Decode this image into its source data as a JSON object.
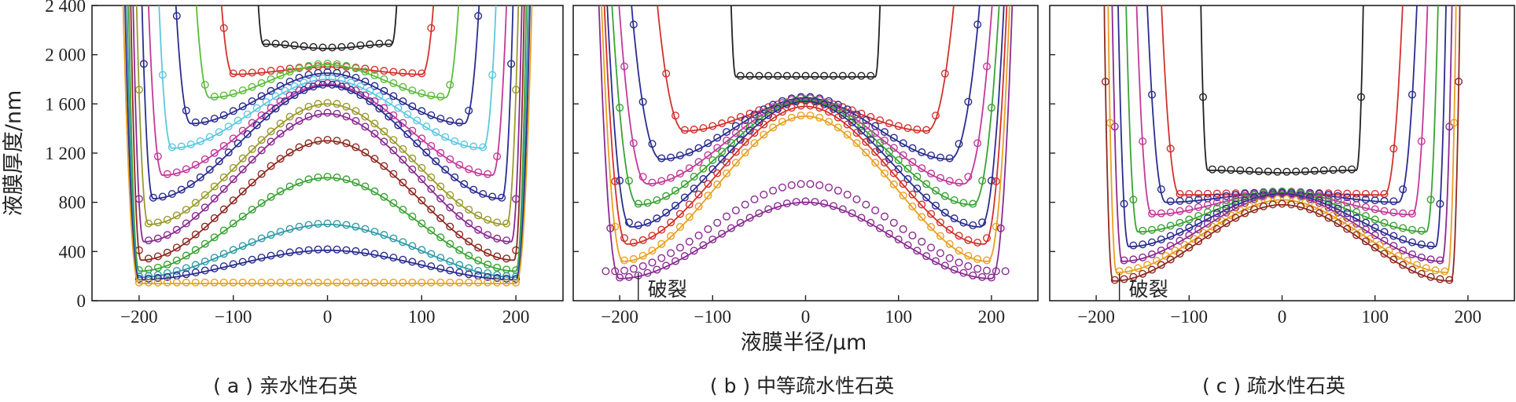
{
  "figure": {
    "y_axis_label": "液膜厚度/nm",
    "x_axis_label": "液膜半径/μm"
  },
  "colors": {
    "black": "#222222",
    "red": "#d2322d",
    "navy": "#2a2d8f",
    "green": "#3aa335",
    "cyan": "#5cc8e0",
    "magenta": "#c2399a",
    "purple": "#8a2b92",
    "olive": "#9a9a2c",
    "teal": "#2f9ba6",
    "darkred": "#8e2a22",
    "orange": "#e8a021",
    "limegreen": "#5cbd3a"
  },
  "chart_data": [
    {
      "id": "a",
      "type": "line",
      "caption": "( a ) 亲水性石英",
      "xlim": [
        -250,
        250
      ],
      "ylim": [
        0,
        2400
      ],
      "xticks": [
        -200,
        -100,
        0,
        100,
        200
      ],
      "xtick_labels": [
        "−200",
        "−100",
        "0",
        "100",
        "200"
      ],
      "yticks": [
        0,
        400,
        800,
        1200,
        1600,
        2000,
        2400
      ],
      "ytick_labels": [
        "0",
        "400",
        "800",
        "1 200",
        "1 600",
        "2 000",
        "2 400"
      ],
      "annotation": null,
      "series": [
        {
          "color": "black",
          "edge": 82,
          "center": 2050,
          "rim": 2085,
          "rim_r": 68,
          "pts": [
            -75,
            75
          ]
        },
        {
          "color": "red",
          "edge": 125,
          "center": 1900,
          "rim": 1840,
          "rim_r": 100,
          "pts": [
            -110,
            110
          ]
        },
        {
          "color": "limegreen",
          "edge": 150,
          "center": 1920,
          "rim": 1650,
          "rim_r": 125,
          "pts": [
            -140,
            140
          ]
        },
        {
          "color": "navy",
          "edge": 170,
          "center": 1850,
          "rim": 1440,
          "rim_r": 145,
          "pts": [
            -170,
            170
          ]
        },
        {
          "color": "cyan",
          "edge": 185,
          "center": 1800,
          "rim": 1240,
          "rim_r": 165,
          "pts": [
            -185,
            185
          ]
        },
        {
          "color": "magenta",
          "edge": 195,
          "center": 1760,
          "rim": 1020,
          "rim_r": 175,
          "pts": [
            -190,
            190
          ]
        },
        {
          "color": "navy",
          "edge": 200,
          "center": 1750,
          "rim": 830,
          "rim_r": 185,
          "pts": [
            -195,
            195
          ]
        },
        {
          "color": "olive",
          "edge": 205,
          "center": 1600,
          "rim": 620,
          "rim_r": 190,
          "pts": [
            -200,
            200
          ]
        },
        {
          "color": "purple",
          "edge": 208,
          "center": 1520,
          "rim": 480,
          "rim_r": 195,
          "pts": [
            -200,
            200
          ]
        },
        {
          "color": "darkred",
          "edge": 210,
          "center": 1300,
          "rim": 330,
          "rim_r": 198,
          "pts": [
            -200,
            200
          ]
        },
        {
          "color": "green",
          "edge": 212,
          "center": 1000,
          "rim": 240,
          "rim_r": 200,
          "pts": [
            -200,
            200
          ]
        },
        {
          "color": "teal",
          "edge": 214,
          "center": 620,
          "rim": 190,
          "rim_r": 200,
          "pts": [
            -200,
            200
          ]
        },
        {
          "color": "navy",
          "edge": 216,
          "center": 410,
          "rim": 170,
          "rim_r": 200,
          "pts": [
            -200,
            200
          ]
        },
        {
          "color": "orange",
          "edge": 218,
          "center": 140,
          "rim": 140,
          "rim_r": 200,
          "pts": [
            -200,
            200
          ]
        }
      ]
    },
    {
      "id": "b",
      "type": "line",
      "caption": "( b ) 中等疏水性石英",
      "xlim": [
        -250,
        250
      ],
      "ylim": [
        0,
        2400
      ],
      "xticks": [
        -200,
        -100,
        0,
        100,
        200
      ],
      "xtick_labels": [
        "−200",
        "−100",
        "0",
        "100",
        "200"
      ],
      "yticks": [
        400,
        800,
        1200,
        1600,
        2000
      ],
      "annotation": {
        "text": "破裂",
        "x": -180,
        "y": 0
      },
      "series": [
        {
          "color": "black",
          "edge": 85,
          "center": 1820,
          "rim": 1820,
          "rim_r": 75,
          "pts": [
            -80,
            80
          ]
        },
        {
          "color": "red",
          "edge": 175,
          "center": 1620,
          "rim": 1380,
          "rim_r": 130,
          "pts": [
            -160,
            160
          ]
        },
        {
          "color": "navy",
          "edge": 200,
          "center": 1650,
          "rim": 1150,
          "rim_r": 155,
          "pts": [
            -185,
            185
          ]
        },
        {
          "color": "magenta",
          "edge": 210,
          "center": 1640,
          "rim": 950,
          "rim_r": 170,
          "pts": [
            -195,
            195
          ]
        },
        {
          "color": "green",
          "edge": 215,
          "center": 1630,
          "rim": 780,
          "rim_r": 180,
          "pts": [
            -200,
            200
          ]
        },
        {
          "color": "navy",
          "edge": 218,
          "center": 1620,
          "rim": 600,
          "rim_r": 188,
          "pts": [
            -200,
            200
          ]
        },
        {
          "color": "red",
          "edge": 220,
          "center": 1580,
          "rim": 460,
          "rim_r": 192,
          "pts": [
            -205,
            205
          ]
        },
        {
          "color": "orange",
          "edge": 222,
          "center": 1500,
          "rim": 320,
          "rim_r": 196,
          "pts": [
            -205,
            205
          ]
        },
        {
          "color": "purple",
          "edge": 224,
          "center": 800,
          "rim": 180,
          "rim_r": 200,
          "pts": [
            -210,
            210
          ]
        }
      ],
      "extra_points": {
        "color": "purple",
        "center": 950,
        "rim": 240,
        "rim_r": 205
      }
    },
    {
      "id": "c",
      "type": "line",
      "caption": "( c ) 疏水性石英",
      "xlim": [
        -250,
        250
      ],
      "ylim": [
        0,
        2400
      ],
      "xticks": [
        -200,
        -100,
        0,
        100,
        200
      ],
      "xtick_labels": [
        "−200",
        "−100",
        "0",
        "100",
        "200"
      ],
      "yticks": [
        400,
        800,
        1200,
        1600,
        2000
      ],
      "annotation": {
        "text": "破裂",
        "x": -175,
        "y": 0
      },
      "series": [
        {
          "color": "black",
          "edge": 90,
          "center": 1040,
          "rim": 1060,
          "rim_r": 80,
          "pts": [
            -85,
            85
          ]
        },
        {
          "color": "red",
          "edge": 135,
          "center": 870,
          "rim": 860,
          "rim_r": 110,
          "pts": [
            -120,
            120
          ]
        },
        {
          "color": "navy",
          "edge": 150,
          "center": 880,
          "rim": 800,
          "rim_r": 125,
          "pts": [
            -140,
            140
          ]
        },
        {
          "color": "magenta",
          "edge": 160,
          "center": 880,
          "rim": 700,
          "rim_r": 140,
          "pts": [
            -150,
            150
          ]
        },
        {
          "color": "green",
          "edge": 170,
          "center": 880,
          "rim": 560,
          "rim_r": 155,
          "pts": [
            -160,
            160
          ]
        },
        {
          "color": "navy",
          "edge": 178,
          "center": 870,
          "rim": 440,
          "rim_r": 165,
          "pts": [
            -170,
            170
          ]
        },
        {
          "color": "purple",
          "edge": 184,
          "center": 860,
          "rim": 320,
          "rim_r": 172,
          "pts": [
            -180,
            180
          ]
        },
        {
          "color": "orange",
          "edge": 188,
          "center": 820,
          "rim": 230,
          "rim_r": 178,
          "pts": [
            -185,
            185
          ]
        },
        {
          "color": "darkred",
          "edge": 192,
          "center": 780,
          "rim": 160,
          "rim_r": 182,
          "pts": [
            -190,
            190
          ]
        }
      ]
    }
  ]
}
